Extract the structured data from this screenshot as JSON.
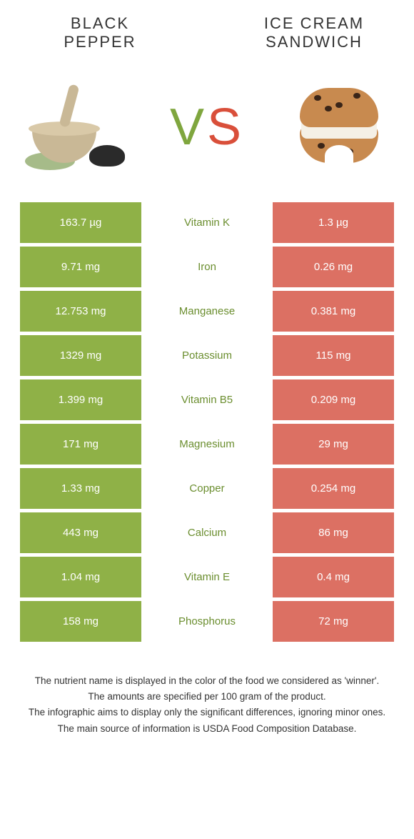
{
  "colors": {
    "left": "#8fb147",
    "right": "#dc7063",
    "nutrient_left": "#6b8e2f",
    "nutrient_right": "#c94f3e",
    "vs_v": "#7fa63e",
    "vs_s": "#d94f3a",
    "title": "#333333",
    "foot": "#333333",
    "bg": "#ffffff"
  },
  "left_title_l1": "BLACK",
  "left_title_l2": "PEPPER",
  "right_title_l1": "ICE CREAM",
  "right_title_l2": "SANDWICH",
  "vs_v": "V",
  "vs_s": "S",
  "rows": [
    {
      "left": "163.7 µg",
      "nutrient": "Vitamin K",
      "right": "1.3 µg",
      "winner": "left"
    },
    {
      "left": "9.71 mg",
      "nutrient": "Iron",
      "right": "0.26 mg",
      "winner": "left"
    },
    {
      "left": "12.753 mg",
      "nutrient": "Manganese",
      "right": "0.381 mg",
      "winner": "left"
    },
    {
      "left": "1329 mg",
      "nutrient": "Potassium",
      "right": "115 mg",
      "winner": "left"
    },
    {
      "left": "1.399 mg",
      "nutrient": "Vitamin B5",
      "right": "0.209 mg",
      "winner": "left"
    },
    {
      "left": "171 mg",
      "nutrient": "Magnesium",
      "right": "29 mg",
      "winner": "left"
    },
    {
      "left": "1.33 mg",
      "nutrient": "Copper",
      "right": "0.254 mg",
      "winner": "left"
    },
    {
      "left": "443 mg",
      "nutrient": "Calcium",
      "right": "86 mg",
      "winner": "left"
    },
    {
      "left": "1.04 mg",
      "nutrient": "Vitamin E",
      "right": "0.4 mg",
      "winner": "left"
    },
    {
      "left": "158 mg",
      "nutrient": "Phosphorus",
      "right": "72 mg",
      "winner": "left"
    }
  ],
  "footnotes": [
    "The nutrient name is displayed in the color of the food we considered as 'winner'.",
    "The amounts are specified per 100 gram of the product.",
    "The infographic aims to display only the significant differences, ignoring minor ones.",
    "The main source of information is USDA Food Composition Database."
  ]
}
